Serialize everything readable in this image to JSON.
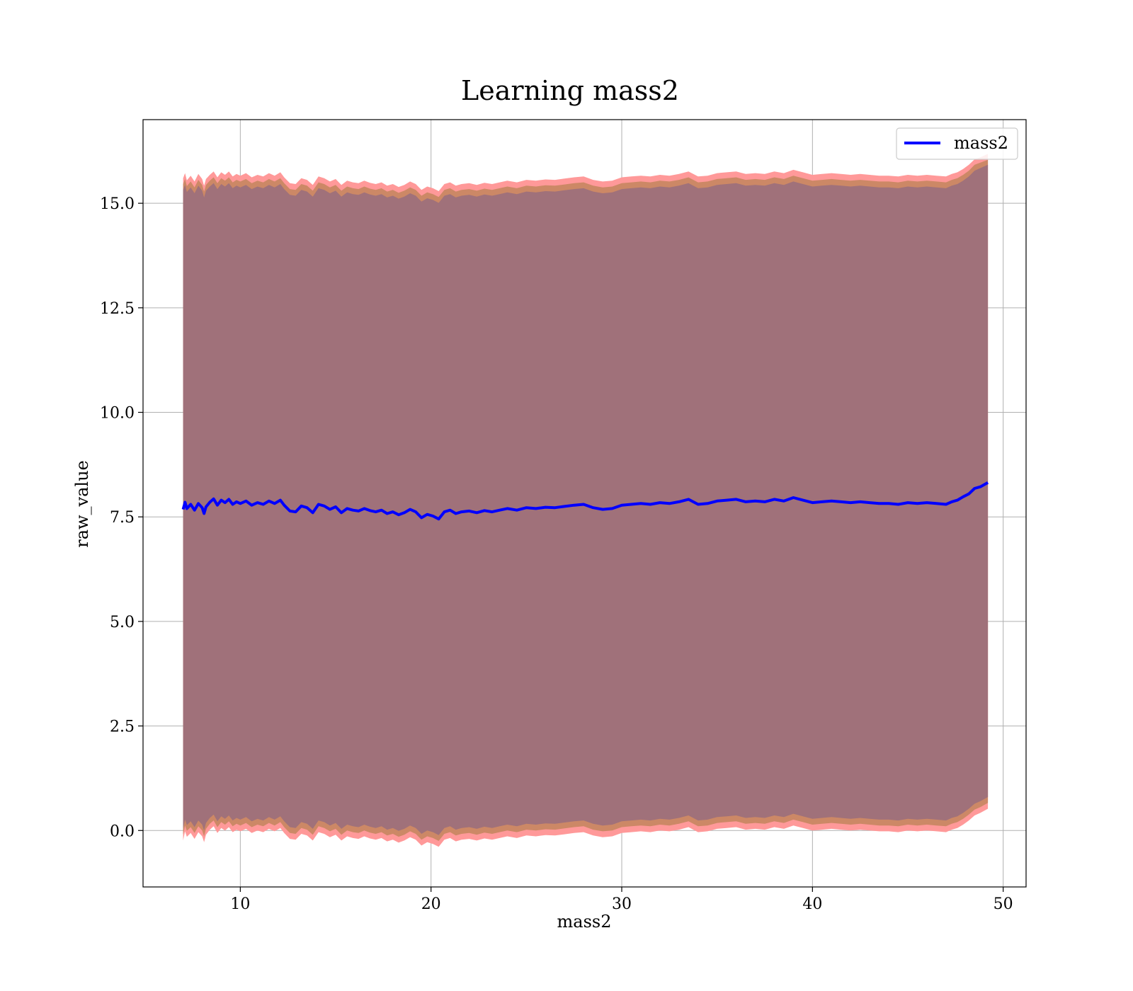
{
  "chart_data": {
    "type": "line",
    "title": "Learning mass2",
    "xlabel": "mass2",
    "ylabel": "raw_value",
    "xlim": [
      4.9,
      51.2
    ],
    "ylim": [
      -1.35,
      17.0
    ],
    "xticks": [
      10,
      20,
      30,
      40,
      50
    ],
    "yticks": [
      0.0,
      2.5,
      5.0,
      7.5,
      10.0,
      12.5,
      15.0
    ],
    "xtick_labels": [
      "10",
      "20",
      "30",
      "40",
      "50"
    ],
    "ytick_labels": [
      "0.0",
      "2.5",
      "5.0",
      "7.5",
      "10.0",
      "12.5",
      "15.0"
    ],
    "grid": true,
    "legend_position": "top-right",
    "series": [
      {
        "name": "mass2",
        "color": "#0000ff",
        "x": [
          7.0,
          7.1,
          7.2,
          7.4,
          7.6,
          7.8,
          8.0,
          8.1,
          8.2,
          8.4,
          8.6,
          8.8,
          9.0,
          9.2,
          9.4,
          9.6,
          9.8,
          10.0,
          10.3,
          10.6,
          10.9,
          11.2,
          11.5,
          11.8,
          12.1,
          12.3,
          12.6,
          12.9,
          13.2,
          13.5,
          13.8,
          14.1,
          14.4,
          14.7,
          15.0,
          15.3,
          15.6,
          15.9,
          16.2,
          16.5,
          16.8,
          17.1,
          17.4,
          17.7,
          18.0,
          18.3,
          18.6,
          18.9,
          19.2,
          19.5,
          19.8,
          20.1,
          20.4,
          20.7,
          21.0,
          21.3,
          21.6,
          22.0,
          22.4,
          22.8,
          23.2,
          23.6,
          24.0,
          24.5,
          25.0,
          25.5,
          26.0,
          26.5,
          27.0,
          27.5,
          28.0,
          28.5,
          29.0,
          29.5,
          30.0,
          30.5,
          31.0,
          31.5,
          32.0,
          32.5,
          33.0,
          33.5,
          34.0,
          34.5,
          35.0,
          35.5,
          36.0,
          36.5,
          37.0,
          37.5,
          38.0,
          38.5,
          39.0,
          39.5,
          40.0,
          40.5,
          41.0,
          41.5,
          42.0,
          42.5,
          43.0,
          43.5,
          44.0,
          44.5,
          45.0,
          45.5,
          46.0,
          46.5,
          47.0,
          47.3,
          47.6,
          47.9,
          48.2,
          48.5,
          48.8,
          49.2
        ],
        "y": [
          7.68,
          7.85,
          7.7,
          7.8,
          7.66,
          7.82,
          7.72,
          7.58,
          7.74,
          7.85,
          7.93,
          7.78,
          7.9,
          7.84,
          7.92,
          7.8,
          7.86,
          7.82,
          7.88,
          7.78,
          7.84,
          7.8,
          7.88,
          7.82,
          7.9,
          7.78,
          7.64,
          7.62,
          7.76,
          7.72,
          7.6,
          7.8,
          7.76,
          7.68,
          7.74,
          7.6,
          7.7,
          7.66,
          7.64,
          7.7,
          7.65,
          7.62,
          7.66,
          7.58,
          7.62,
          7.55,
          7.6,
          7.68,
          7.62,
          7.48,
          7.56,
          7.52,
          7.45,
          7.62,
          7.66,
          7.58,
          7.62,
          7.64,
          7.6,
          7.65,
          7.62,
          7.66,
          7.7,
          7.66,
          7.72,
          7.7,
          7.73,
          7.72,
          7.75,
          7.78,
          7.8,
          7.72,
          7.68,
          7.7,
          7.78,
          7.8,
          7.82,
          7.8,
          7.84,
          7.82,
          7.86,
          7.92,
          7.8,
          7.82,
          7.88,
          7.9,
          7.92,
          7.86,
          7.88,
          7.86,
          7.92,
          7.88,
          7.96,
          7.9,
          7.84,
          7.86,
          7.88,
          7.86,
          7.84,
          7.86,
          7.84,
          7.82,
          7.82,
          7.8,
          7.84,
          7.82,
          7.84,
          7.82,
          7.8,
          7.86,
          7.9,
          7.98,
          8.05,
          8.18,
          8.22,
          8.32
        ]
      }
    ],
    "band_outer": {
      "color": "#ff9999",
      "upper": [
        15.6,
        15.72,
        15.55,
        15.66,
        15.52,
        15.7,
        15.58,
        15.42,
        15.58,
        15.68,
        15.76,
        15.62,
        15.74,
        15.68,
        15.76,
        15.64,
        15.7,
        15.66,
        15.72,
        15.62,
        15.68,
        15.64,
        15.72,
        15.66,
        15.74,
        15.62,
        15.48,
        15.46,
        15.6,
        15.56,
        15.44,
        15.64,
        15.6,
        15.52,
        15.58,
        15.44,
        15.54,
        15.5,
        15.48,
        15.54,
        15.49,
        15.46,
        15.5,
        15.42,
        15.46,
        15.39,
        15.44,
        15.52,
        15.46,
        15.32,
        15.4,
        15.36,
        15.29,
        15.46,
        15.5,
        15.42,
        15.46,
        15.48,
        15.44,
        15.49,
        15.46,
        15.5,
        15.54,
        15.5,
        15.56,
        15.54,
        15.57,
        15.56,
        15.59,
        15.62,
        15.64,
        15.56,
        15.52,
        15.54,
        15.62,
        15.64,
        15.66,
        15.64,
        15.68,
        15.66,
        15.7,
        15.76,
        15.64,
        15.66,
        15.72,
        15.74,
        15.76,
        15.7,
        15.72,
        15.7,
        15.76,
        15.72,
        15.8,
        15.74,
        15.68,
        15.7,
        15.72,
        15.7,
        15.68,
        15.7,
        15.68,
        15.66,
        15.66,
        15.64,
        15.68,
        15.66,
        15.68,
        15.66,
        15.64,
        15.7,
        15.74,
        15.82,
        15.92,
        16.05,
        16.1,
        16.18
      ],
      "lower": [
        -0.24,
        -0.02,
        -0.15,
        -0.06,
        -0.2,
        -0.04,
        -0.14,
        -0.28,
        -0.1,
        0.02,
        0.1,
        -0.06,
        0.06,
        0.0,
        0.08,
        -0.04,
        0.02,
        -0.02,
        0.04,
        -0.06,
        0.0,
        -0.04,
        0.04,
        -0.02,
        0.06,
        -0.06,
        -0.2,
        -0.22,
        -0.08,
        -0.12,
        -0.24,
        -0.04,
        -0.08,
        -0.16,
        -0.1,
        -0.24,
        -0.14,
        -0.18,
        -0.2,
        -0.14,
        -0.19,
        -0.22,
        -0.18,
        -0.26,
        -0.22,
        -0.29,
        -0.24,
        -0.16,
        -0.22,
        -0.36,
        -0.28,
        -0.32,
        -0.39,
        -0.22,
        -0.18,
        -0.26,
        -0.22,
        -0.2,
        -0.24,
        -0.19,
        -0.22,
        -0.18,
        -0.14,
        -0.18,
        -0.12,
        -0.14,
        -0.11,
        -0.12,
        -0.09,
        -0.06,
        -0.04,
        -0.12,
        -0.16,
        -0.14,
        -0.06,
        -0.04,
        -0.02,
        -0.04,
        0.0,
        -0.02,
        0.02,
        0.08,
        -0.04,
        -0.02,
        0.04,
        0.06,
        0.08,
        0.02,
        0.04,
        0.02,
        0.08,
        0.04,
        0.12,
        0.06,
        0.0,
        0.02,
        0.04,
        0.02,
        0.0,
        0.02,
        0.0,
        -0.02,
        -0.02,
        -0.04,
        0.0,
        -0.02,
        0.0,
        -0.02,
        -0.04,
        0.02,
        0.06,
        0.14,
        0.24,
        0.36,
        0.42,
        0.52
      ]
    },
    "band_middle": {
      "color": "#cc8866",
      "upper": [
        15.46,
        15.58,
        15.41,
        15.52,
        15.38,
        15.56,
        15.44,
        15.28,
        15.44,
        15.54,
        15.62,
        15.48,
        15.6,
        15.54,
        15.62,
        15.5,
        15.56,
        15.52,
        15.58,
        15.48,
        15.54,
        15.5,
        15.58,
        15.52,
        15.6,
        15.48,
        15.34,
        15.32,
        15.46,
        15.42,
        15.3,
        15.5,
        15.46,
        15.38,
        15.44,
        15.3,
        15.4,
        15.36,
        15.34,
        15.4,
        15.35,
        15.32,
        15.36,
        15.28,
        15.32,
        15.25,
        15.3,
        15.38,
        15.32,
        15.18,
        15.26,
        15.22,
        15.15,
        15.32,
        15.36,
        15.28,
        15.32,
        15.34,
        15.3,
        15.35,
        15.32,
        15.36,
        15.4,
        15.36,
        15.42,
        15.4,
        15.43,
        15.42,
        15.45,
        15.48,
        15.5,
        15.42,
        15.38,
        15.4,
        15.48,
        15.5,
        15.52,
        15.5,
        15.54,
        15.52,
        15.56,
        15.62,
        15.5,
        15.52,
        15.58,
        15.6,
        15.62,
        15.56,
        15.58,
        15.56,
        15.62,
        15.58,
        15.66,
        15.6,
        15.54,
        15.56,
        15.58,
        15.56,
        15.54,
        15.56,
        15.54,
        15.52,
        15.52,
        15.5,
        15.54,
        15.52,
        15.54,
        15.52,
        15.5,
        15.56,
        15.6,
        15.68,
        15.78,
        15.92,
        15.97,
        16.04
      ],
      "lower": [
        -0.1,
        0.12,
        -0.01,
        0.08,
        -0.06,
        0.1,
        0.0,
        -0.14,
        0.04,
        0.16,
        0.24,
        0.08,
        0.2,
        0.14,
        0.22,
        0.1,
        0.16,
        0.12,
        0.18,
        0.08,
        0.14,
        0.1,
        0.18,
        0.12,
        0.2,
        0.08,
        -0.06,
        -0.08,
        0.06,
        0.02,
        -0.1,
        0.1,
        0.06,
        -0.02,
        0.04,
        -0.1,
        0.0,
        -0.04,
        -0.06,
        0.0,
        -0.05,
        -0.08,
        -0.04,
        -0.12,
        -0.08,
        -0.15,
        -0.1,
        -0.02,
        -0.08,
        -0.22,
        -0.14,
        -0.18,
        -0.25,
        -0.08,
        -0.04,
        -0.12,
        -0.08,
        -0.06,
        -0.1,
        -0.05,
        -0.08,
        -0.04,
        0.0,
        -0.04,
        0.02,
        0.0,
        0.03,
        0.02,
        0.05,
        0.08,
        0.1,
        0.02,
        -0.02,
        0.0,
        0.08,
        0.1,
        0.12,
        0.1,
        0.14,
        0.12,
        0.16,
        0.22,
        0.1,
        0.12,
        0.18,
        0.2,
        0.22,
        0.16,
        0.18,
        0.16,
        0.22,
        0.18,
        0.26,
        0.2,
        0.14,
        0.16,
        0.18,
        0.16,
        0.14,
        0.16,
        0.14,
        0.12,
        0.12,
        0.1,
        0.14,
        0.12,
        0.14,
        0.12,
        0.1,
        0.16,
        0.2,
        0.28,
        0.38,
        0.5,
        0.56,
        0.66
      ]
    },
    "band_inner": {
      "color": "#a0717a",
      "upper": [
        15.32,
        15.44,
        15.27,
        15.38,
        15.24,
        15.42,
        15.3,
        15.14,
        15.3,
        15.4,
        15.48,
        15.34,
        15.46,
        15.4,
        15.48,
        15.36,
        15.42,
        15.38,
        15.44,
        15.34,
        15.4,
        15.36,
        15.44,
        15.38,
        15.46,
        15.34,
        15.2,
        15.18,
        15.32,
        15.28,
        15.16,
        15.36,
        15.32,
        15.24,
        15.3,
        15.16,
        15.26,
        15.22,
        15.2,
        15.26,
        15.21,
        15.18,
        15.22,
        15.14,
        15.18,
        15.11,
        15.16,
        15.24,
        15.18,
        15.04,
        15.12,
        15.08,
        15.01,
        15.18,
        15.22,
        15.14,
        15.18,
        15.2,
        15.16,
        15.21,
        15.18,
        15.22,
        15.26,
        15.22,
        15.28,
        15.26,
        15.29,
        15.28,
        15.31,
        15.34,
        15.36,
        15.28,
        15.24,
        15.26,
        15.34,
        15.36,
        15.38,
        15.36,
        15.4,
        15.38,
        15.42,
        15.48,
        15.36,
        15.38,
        15.44,
        15.46,
        15.48,
        15.42,
        15.44,
        15.42,
        15.48,
        15.44,
        15.52,
        15.46,
        15.4,
        15.42,
        15.44,
        15.42,
        15.4,
        15.42,
        15.4,
        15.38,
        15.38,
        15.36,
        15.4,
        15.38,
        15.4,
        15.38,
        15.36,
        15.42,
        15.46,
        15.54,
        15.64,
        15.78,
        15.84,
        15.92
      ],
      "lower": [
        0.04,
        0.26,
        0.13,
        0.22,
        0.08,
        0.24,
        0.14,
        0.0,
        0.18,
        0.3,
        0.38,
        0.22,
        0.34,
        0.28,
        0.36,
        0.24,
        0.3,
        0.26,
        0.32,
        0.22,
        0.28,
        0.24,
        0.32,
        0.26,
        0.34,
        0.22,
        0.08,
        0.06,
        0.2,
        0.16,
        0.04,
        0.24,
        0.2,
        0.12,
        0.18,
        0.04,
        0.14,
        0.1,
        0.08,
        0.14,
        0.09,
        0.06,
        0.1,
        0.02,
        0.06,
        -0.01,
        0.04,
        0.12,
        0.06,
        -0.08,
        0.0,
        -0.04,
        -0.11,
        0.06,
        0.1,
        0.02,
        0.06,
        0.08,
        0.04,
        0.09,
        0.06,
        0.1,
        0.14,
        0.1,
        0.16,
        0.14,
        0.17,
        0.16,
        0.19,
        0.22,
        0.24,
        0.16,
        0.12,
        0.14,
        0.22,
        0.24,
        0.26,
        0.24,
        0.28,
        0.26,
        0.3,
        0.36,
        0.24,
        0.26,
        0.32,
        0.34,
        0.36,
        0.3,
        0.32,
        0.3,
        0.36,
        0.32,
        0.4,
        0.34,
        0.28,
        0.3,
        0.32,
        0.3,
        0.28,
        0.3,
        0.28,
        0.26,
        0.26,
        0.24,
        0.28,
        0.26,
        0.28,
        0.26,
        0.24,
        0.3,
        0.34,
        0.42,
        0.52,
        0.64,
        0.7,
        0.8
      ]
    }
  }
}
